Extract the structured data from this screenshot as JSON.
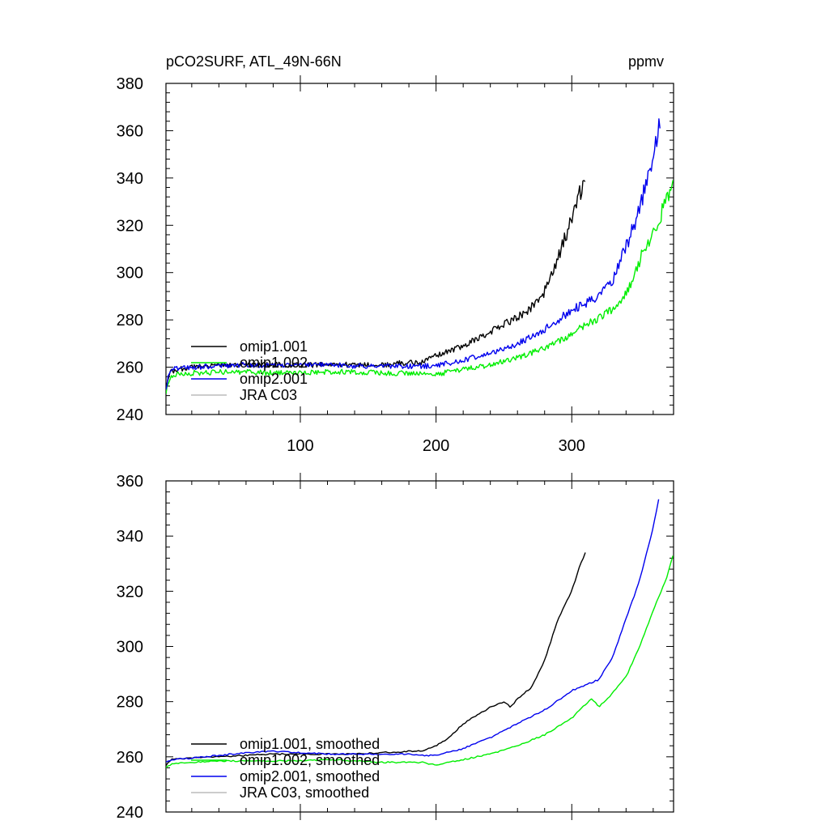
{
  "chart_data": [
    {
      "type": "line",
      "title": "pCO2SURF, ATL_49N-66N",
      "units": "ppmv",
      "xlabel": "",
      "ylabel": "",
      "xlim": [
        1,
        375
      ],
      "ylim": [
        240,
        380
      ],
      "xticks": [
        100,
        200,
        300
      ],
      "yticks": [
        240,
        260,
        280,
        300,
        320,
        340,
        360,
        380
      ],
      "legend_position": "bottom-left",
      "series": [
        {
          "name": "omip1.001",
          "color": "#000000",
          "x": [
            1,
            4,
            10,
            20,
            40,
            60,
            80,
            100,
            120,
            140,
            160,
            180,
            190,
            200,
            210,
            220,
            230,
            240,
            250,
            260,
            270,
            280,
            290,
            300,
            305,
            310
          ],
          "y": [
            250,
            258,
            259,
            260,
            260.5,
            261,
            261,
            261,
            261,
            261,
            261,
            262,
            262,
            265,
            267,
            269,
            272,
            275,
            278,
            281,
            285,
            292,
            306,
            323,
            332,
            339
          ]
        },
        {
          "name": "omip1.002",
          "color": "#00ee00",
          "x": [
            1,
            4,
            10,
            20,
            40,
            60,
            80,
            100,
            120,
            140,
            160,
            180,
            200,
            220,
            240,
            260,
            280,
            300,
            310,
            320,
            330,
            340,
            350,
            360,
            370,
            375
          ],
          "y": [
            249,
            256,
            257,
            257.5,
            258,
            258,
            257.5,
            257.5,
            258,
            258,
            257.5,
            257.5,
            257,
            259,
            261,
            264,
            268,
            274,
            278,
            281,
            284,
            291,
            305,
            318,
            330,
            339
          ]
        },
        {
          "name": "omip2.001",
          "color": "#0000ee",
          "x": [
            1,
            4,
            10,
            20,
            40,
            60,
            80,
            100,
            120,
            140,
            160,
            180,
            200,
            220,
            240,
            260,
            280,
            300,
            310,
            320,
            330,
            340,
            350,
            360,
            365
          ],
          "y": [
            251,
            259,
            259.5,
            260,
            260.5,
            261,
            261,
            261,
            261,
            260.5,
            260.5,
            260.5,
            260.5,
            263,
            266,
            270,
            276,
            284,
            287,
            290,
            297,
            311,
            327,
            350,
            365
          ]
        },
        {
          "name": "JRA C03",
          "color": "#bbbbbb",
          "x": [],
          "y": []
        }
      ]
    },
    {
      "type": "line",
      "title": "",
      "xlabel": "",
      "ylabel": "",
      "xlim": [
        1,
        375
      ],
      "ylim": [
        240,
        360
      ],
      "xticks": [
        100,
        200,
        300
      ],
      "yticks": [
        240,
        260,
        280,
        300,
        320,
        340,
        360
      ],
      "legend_position": "bottom-left",
      "series": [
        {
          "name": "omip1.001, smoothed",
          "color": "#000000",
          "x": [
            1,
            5,
            20,
            40,
            60,
            80,
            100,
            120,
            140,
            160,
            180,
            190,
            200,
            210,
            220,
            230,
            240,
            250,
            255,
            260,
            270,
            280,
            290,
            300,
            305,
            310
          ],
          "y": [
            257,
            259,
            259.5,
            260,
            260.5,
            261,
            261,
            261,
            261,
            261.5,
            262,
            262,
            264,
            267,
            272,
            275,
            278,
            280,
            278,
            281,
            285,
            295,
            310,
            320,
            328,
            334
          ]
        },
        {
          "name": "omip1.002, smoothed",
          "color": "#00ee00",
          "x": [
            1,
            5,
            20,
            40,
            60,
            80,
            100,
            120,
            140,
            160,
            180,
            190,
            200,
            220,
            240,
            260,
            280,
            300,
            310,
            315,
            320,
            330,
            340,
            350,
            360,
            370,
            375
          ],
          "y": [
            256,
            257.5,
            258,
            258.5,
            258.5,
            258.5,
            258.5,
            259,
            258.5,
            258,
            258,
            258,
            257,
            259,
            261,
            264,
            268,
            274,
            279,
            281,
            278,
            283,
            289,
            300,
            313,
            325,
            334
          ]
        },
        {
          "name": "omip2.001, smoothed",
          "color": "#0000ee",
          "x": [
            1,
            5,
            20,
            40,
            60,
            80,
            100,
            120,
            140,
            160,
            180,
            190,
            200,
            220,
            240,
            260,
            280,
            300,
            310,
            320,
            330,
            340,
            350,
            360,
            365
          ],
          "y": [
            258,
            259,
            259.5,
            260.5,
            261.5,
            262,
            261.5,
            261,
            261,
            261,
            261,
            260.5,
            260.5,
            263,
            267,
            272,
            277,
            284,
            286,
            288,
            296,
            310,
            324,
            343,
            356
          ]
        },
        {
          "name": "JRA C03, smoothed",
          "color": "#bbbbbb",
          "x": [],
          "y": []
        }
      ]
    }
  ]
}
